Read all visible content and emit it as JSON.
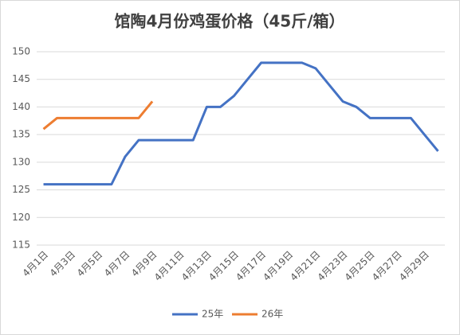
{
  "chart_data": {
    "type": "line",
    "title": "馆陶4月份鸡蛋价格（45斤/箱）",
    "categories": [
      "4月1日",
      null,
      "4月3日",
      null,
      "4月5日",
      null,
      "4月7日",
      null,
      "4月9日",
      null,
      "4月11日",
      null,
      "4月13日",
      null,
      "4月15日",
      null,
      "4月17日",
      null,
      "4月19日",
      null,
      "4月21日",
      null,
      "4月23日",
      null,
      "4月25日",
      null,
      "4月27日",
      null,
      "4月29日",
      null
    ],
    "series": [
      {
        "name": "25年",
        "color": "#4472c4",
        "values": [
          126,
          126,
          126,
          126,
          126,
          126,
          131,
          134,
          134,
          134,
          134,
          134,
          140,
          140,
          142,
          145,
          148,
          148,
          148,
          148,
          147,
          144,
          141,
          140,
          138,
          138,
          138,
          138,
          135,
          132
        ]
      },
      {
        "name": "26年",
        "color": "#ed7d31",
        "values": [
          136,
          138,
          138,
          138,
          138,
          138,
          138,
          138,
          141,
          null,
          null,
          null,
          null,
          null,
          null,
          null,
          null,
          null,
          null,
          null,
          null,
          null,
          null,
          null,
          null,
          null,
          null,
          null,
          null,
          null
        ]
      }
    ],
    "ylim": [
      115,
      150
    ],
    "yticks": [
      115,
      120,
      125,
      130,
      135,
      140,
      145,
      150
    ],
    "grid": true,
    "legend": "bottom"
  }
}
